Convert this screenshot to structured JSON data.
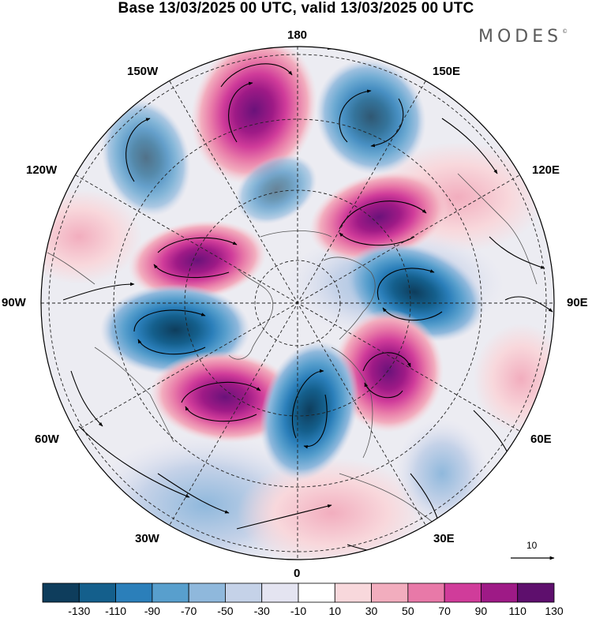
{
  "title": "Base 13/03/2025 00 UTC, valid 13/03/2025 00 UTC",
  "brand": {
    "name": "MODES",
    "mark": "©"
  },
  "longitude_labels": {
    "top": "180",
    "top_left": "150W",
    "top_right": "150E",
    "upper_left": "120W",
    "upper_right": "120E",
    "left": "90W",
    "right": "90E",
    "lower_left": "60W",
    "lower_right": "60E",
    "bottom_left": "30W",
    "bottom_right": "30E",
    "bottom": "0"
  },
  "vector_reference": {
    "value": "10"
  },
  "colorbar": {
    "tick_labels": [
      "-130",
      "-110",
      "-90",
      "-70",
      "-50",
      "-30",
      "-10",
      "10",
      "30",
      "50",
      "70",
      "90",
      "110",
      "130"
    ],
    "colors": [
      "#0e3d5c",
      "#145f8c",
      "#2b7fba",
      "#589fcd",
      "#8fb8dc",
      "#c5d2e8",
      "#e4e4f1",
      "#ffffff",
      "#f8d8dc",
      "#f2adbe",
      "#e879a8",
      "#d03c9a",
      "#9e1a86",
      "#5e0f6d"
    ]
  },
  "map": {
    "projection": "north polar stereographic",
    "graticule": "dashed",
    "anomaly_centers": [
      {
        "sign": "positive",
        "level": "130",
        "color": "#7b1e82"
      },
      {
        "sign": "negative",
        "level": "-50",
        "color": "#8fb8dc"
      },
      {
        "sign": "negative",
        "level": "-90",
        "color": "#2b7fba"
      },
      {
        "sign": "negative",
        "level": "-70",
        "color": "#589fcd"
      },
      {
        "sign": "positive",
        "level": "130",
        "color": "#7b1e82"
      },
      {
        "sign": "positive",
        "level": "130",
        "color": "#8a1c86"
      },
      {
        "sign": "negative",
        "level": "-130",
        "color": "#0e3d5c"
      },
      {
        "sign": "negative",
        "level": "-130",
        "color": "#0e3d5c"
      },
      {
        "sign": "positive",
        "level": "130",
        "color": "#6a127a"
      },
      {
        "sign": "positive",
        "level": "110",
        "color": "#9e1a86"
      },
      {
        "sign": "negative",
        "level": "-130",
        "color": "#0e3d5c"
      },
      {
        "sign": "positive",
        "level": "30",
        "color": "#f2adbe"
      },
      {
        "sign": "negative",
        "level": "-30",
        "color": "#c5d2e8"
      },
      {
        "sign": "positive",
        "level": "30",
        "color": "#f8d8dc"
      }
    ]
  }
}
